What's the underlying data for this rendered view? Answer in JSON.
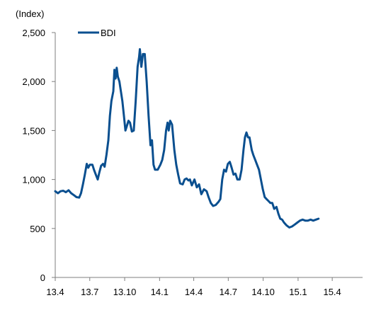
{
  "chart_data": {
    "type": "line",
    "y_unit_label": "(Index)",
    "ylim": [
      0,
      2500
    ],
    "yticks": [
      0,
      500,
      1000,
      1500,
      2000,
      2500
    ],
    "ytick_labels": [
      "0",
      "500",
      "1,000",
      "1,500",
      "2,000",
      "2,500"
    ],
    "xticks": [
      "2013-04",
      "2013-07",
      "2013-10",
      "2014-01",
      "2014-04",
      "2014-07",
      "2014-10",
      "2015-01",
      "2015-04"
    ],
    "xtick_labels": [
      "13.4",
      "13.7",
      "13.10",
      "14.1",
      "14.4",
      "14.7",
      "14.10",
      "15.1",
      "15.4"
    ],
    "xlim": [
      "2013-04-01",
      "2015-06-20"
    ],
    "grid": false,
    "legend_position": "top-left",
    "colors": {
      "series": "#0a4f8f",
      "axis": "#7f7f7f"
    },
    "series": [
      {
        "name": "BDI",
        "points": [
          [
            "2013-04-01",
            880
          ],
          [
            "2013-04-08",
            860
          ],
          [
            "2013-04-15",
            880
          ],
          [
            "2013-04-22",
            885
          ],
          [
            "2013-04-29",
            870
          ],
          [
            "2013-05-06",
            890
          ],
          [
            "2013-05-13",
            860
          ],
          [
            "2013-05-20",
            840
          ],
          [
            "2013-05-27",
            820
          ],
          [
            "2013-06-03",
            815
          ],
          [
            "2013-06-08",
            860
          ],
          [
            "2013-06-13",
            950
          ],
          [
            "2013-06-18",
            1050
          ],
          [
            "2013-06-23",
            1160
          ],
          [
            "2013-06-27",
            1120
          ],
          [
            "2013-07-01",
            1150
          ],
          [
            "2013-07-08",
            1150
          ],
          [
            "2013-07-12",
            1100
          ],
          [
            "2013-07-17",
            1050
          ],
          [
            "2013-07-22",
            1000
          ],
          [
            "2013-07-26",
            1070
          ],
          [
            "2013-07-31",
            1140
          ],
          [
            "2013-08-05",
            1160
          ],
          [
            "2013-08-09",
            1130
          ],
          [
            "2013-08-14",
            1250
          ],
          [
            "2013-08-19",
            1400
          ],
          [
            "2013-08-23",
            1650
          ],
          [
            "2013-08-27",
            1800
          ],
          [
            "2013-09-01",
            1900
          ],
          [
            "2013-09-04",
            2120
          ],
          [
            "2013-09-07",
            2030
          ],
          [
            "2013-09-10",
            2140
          ],
          [
            "2013-09-13",
            2050
          ],
          [
            "2013-09-17",
            2000
          ],
          [
            "2013-09-21",
            1900
          ],
          [
            "2013-09-25",
            1800
          ],
          [
            "2013-09-29",
            1650
          ],
          [
            "2013-10-03",
            1500
          ],
          [
            "2013-10-07",
            1550
          ],
          [
            "2013-10-11",
            1600
          ],
          [
            "2013-10-15",
            1580
          ],
          [
            "2013-10-20",
            1490
          ],
          [
            "2013-10-25",
            1500
          ],
          [
            "2013-10-30",
            1800
          ],
          [
            "2013-11-04",
            2150
          ],
          [
            "2013-11-08",
            2250
          ],
          [
            "2013-11-10",
            2330
          ],
          [
            "2013-11-14",
            2150
          ],
          [
            "2013-11-18",
            2280
          ],
          [
            "2013-11-23",
            2280
          ],
          [
            "2013-11-28",
            2000
          ],
          [
            "2013-12-03",
            1650
          ],
          [
            "2013-12-08",
            1350
          ],
          [
            "2013-12-12",
            1400
          ],
          [
            "2013-12-16",
            1150
          ],
          [
            "2013-12-20",
            1100
          ],
          [
            "2013-12-27",
            1100
          ],
          [
            "2014-01-03",
            1150
          ],
          [
            "2014-01-08",
            1200
          ],
          [
            "2014-01-13",
            1300
          ],
          [
            "2014-01-18",
            1500
          ],
          [
            "2014-01-22",
            1580
          ],
          [
            "2014-01-25",
            1500
          ],
          [
            "2014-01-29",
            1600
          ],
          [
            "2014-02-03",
            1560
          ],
          [
            "2014-02-09",
            1300
          ],
          [
            "2014-02-14",
            1150
          ],
          [
            "2014-02-19",
            1050
          ],
          [
            "2014-02-24",
            960
          ],
          [
            "2014-03-03",
            950
          ],
          [
            "2014-03-08",
            1000
          ],
          [
            "2014-03-13",
            1010
          ],
          [
            "2014-03-18",
            990
          ],
          [
            "2014-03-22",
            1000
          ],
          [
            "2014-03-27",
            940
          ],
          [
            "2014-04-03",
            1000
          ],
          [
            "2014-04-09",
            920
          ],
          [
            "2014-04-15",
            950
          ],
          [
            "2014-04-21",
            850
          ],
          [
            "2014-04-28",
            900
          ],
          [
            "2014-05-05",
            880
          ],
          [
            "2014-05-10",
            820
          ],
          [
            "2014-05-16",
            760
          ],
          [
            "2014-05-22",
            730
          ],
          [
            "2014-05-29",
            740
          ],
          [
            "2014-06-05",
            770
          ],
          [
            "2014-06-10",
            800
          ],
          [
            "2014-06-15",
            1000
          ],
          [
            "2014-06-20",
            1100
          ],
          [
            "2014-06-25",
            1080
          ],
          [
            "2014-06-30",
            1160
          ],
          [
            "2014-07-05",
            1180
          ],
          [
            "2014-07-10",
            1120
          ],
          [
            "2014-07-15",
            1050
          ],
          [
            "2014-07-20",
            1060
          ],
          [
            "2014-07-25",
            1000
          ],
          [
            "2014-07-31",
            1000
          ],
          [
            "2014-08-05",
            1100
          ],
          [
            "2014-08-10",
            1300
          ],
          [
            "2014-08-14",
            1430
          ],
          [
            "2014-08-18",
            1480
          ],
          [
            "2014-08-22",
            1430
          ],
          [
            "2014-08-26",
            1430
          ],
          [
            "2014-09-01",
            1300
          ],
          [
            "2014-09-05",
            1250
          ],
          [
            "2014-09-10",
            1200
          ],
          [
            "2014-09-15",
            1150
          ],
          [
            "2014-09-20",
            1100
          ],
          [
            "2014-09-25",
            1000
          ],
          [
            "2014-09-30",
            900
          ],
          [
            "2014-10-05",
            820
          ],
          [
            "2014-10-10",
            800
          ],
          [
            "2014-10-15",
            780
          ],
          [
            "2014-10-20",
            760
          ],
          [
            "2014-10-25",
            760
          ],
          [
            "2014-10-30",
            700
          ],
          [
            "2014-11-05",
            720
          ],
          [
            "2014-11-10",
            650
          ],
          [
            "2014-11-15",
            600
          ],
          [
            "2014-11-20",
            590
          ],
          [
            "2014-11-25",
            560
          ],
          [
            "2014-12-02",
            530
          ],
          [
            "2014-12-09",
            510
          ],
          [
            "2014-12-16",
            520
          ],
          [
            "2014-12-23",
            540
          ],
          [
            "2014-12-30",
            560
          ],
          [
            "2015-01-06",
            580
          ],
          [
            "2015-01-13",
            590
          ],
          [
            "2015-01-20",
            580
          ],
          [
            "2015-01-27",
            580
          ],
          [
            "2015-02-03",
            590
          ],
          [
            "2015-02-10",
            580
          ],
          [
            "2015-02-17",
            590
          ],
          [
            "2015-02-24",
            600
          ]
        ]
      }
    ]
  }
}
